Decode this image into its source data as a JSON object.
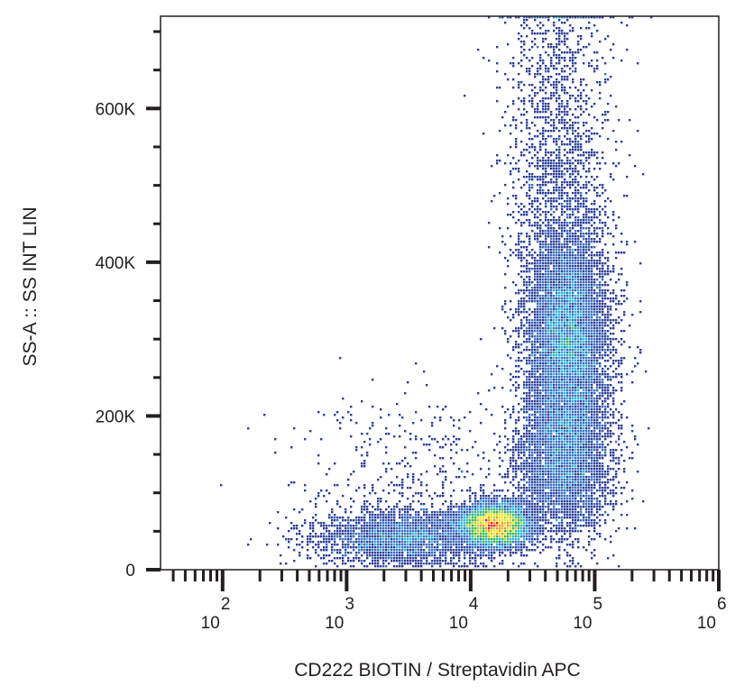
{
  "chart_data": {
    "type": "heatmap",
    "subtype": "flow-cytometry-density-dot-plot",
    "xlabel": "CD222 BIOTIN / Streptavidin APC",
    "ylabel": "SS-A :: SS INT LIN",
    "x_scale": "log",
    "x_range": [
      31.6,
      1000000
    ],
    "x_ticks": [
      {
        "value": 100,
        "base": "10",
        "exp": "2"
      },
      {
        "value": 1000,
        "base": "10",
        "exp": "3"
      },
      {
        "value": 10000,
        "base": "10",
        "exp": "4"
      },
      {
        "value": 100000,
        "base": "10",
        "exp": "5"
      },
      {
        "value": 1000000,
        "base": "10",
        "exp": "6"
      }
    ],
    "y_scale": "linear",
    "y_range": [
      0,
      720000
    ],
    "y_ticks": [
      {
        "value": 0,
        "label": "0"
      },
      {
        "value": 200000,
        "label": "200K"
      },
      {
        "value": 400000,
        "label": "400K"
      },
      {
        "value": 600000,
        "label": "600K"
      }
    ],
    "y_minor_step": 50000,
    "grid": false,
    "legend": "none",
    "colormap": [
      "#2e3f98",
      "#3a6fc0",
      "#27b9d6",
      "#3cb54a",
      "#b5d334",
      "#f6e61c",
      "#f7941d",
      "#ed1c24"
    ],
    "populations": [
      {
        "log10_x_mean": 4.2,
        "log10_x_sd": 0.14,
        "y_mean": 58000,
        "y_sd": 14000,
        "events": 5500
      },
      {
        "log10_x_mean": 4.78,
        "log10_x_sd": 0.17,
        "y_mean": 300000,
        "y_sd": 80000,
        "events": 8000
      },
      {
        "log10_x_mean": 4.75,
        "log10_x_sd": 0.2,
        "y_mean": 140000,
        "y_sd": 50000,
        "events": 3500
      },
      {
        "log10_x_mean": 3.45,
        "log10_x_sd": 0.35,
        "y_mean": 42000,
        "y_sd": 18000,
        "events": 2800
      },
      {
        "log10_x_mean": 4.7,
        "log10_x_sd": 0.22,
        "y_mean": 560000,
        "y_sd": 110000,
        "events": 1500
      },
      {
        "log10_x_mean": 3.6,
        "log10_x_sd": 0.5,
        "y_mean": 110000,
        "y_sd": 60000,
        "events": 500
      }
    ]
  }
}
